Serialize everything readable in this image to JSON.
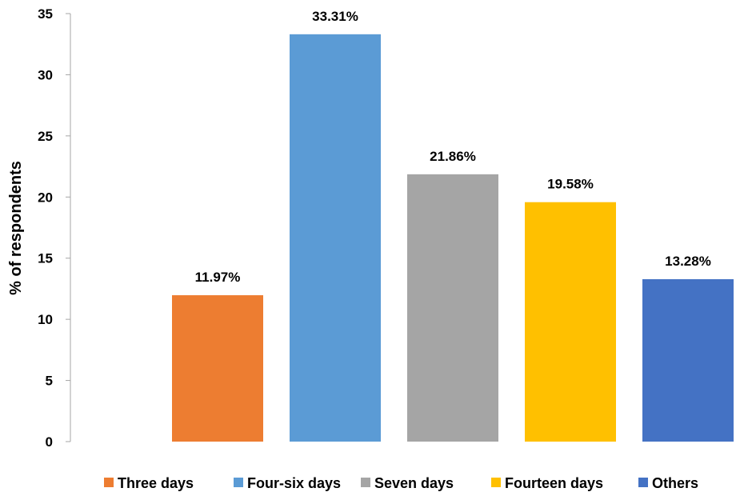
{
  "chart_data": {
    "type": "bar",
    "title": "",
    "xlabel": "",
    "ylabel": "% of respondents",
    "ylim": [
      0,
      35
    ],
    "yticks": [
      0,
      5,
      10,
      15,
      20,
      25,
      30,
      35
    ],
    "grid": false,
    "legend_position": "bottom",
    "series": [
      {
        "name": "Three days",
        "value": 11.97,
        "label": "11.97%",
        "color": "#ED7D31"
      },
      {
        "name": "Four-six days",
        "value": 33.31,
        "label": "33.31%",
        "color": "#5B9BD5"
      },
      {
        "name": "Seven days",
        "value": 21.86,
        "label": "21.86%",
        "color": "#A5A5A5"
      },
      {
        "name": "Fourteen days",
        "value": 19.58,
        "label": "19.58%",
        "color": "#FFC000"
      },
      {
        "name": "Others",
        "value": 13.28,
        "label": "13.28%",
        "color": "#4472C4"
      }
    ]
  }
}
